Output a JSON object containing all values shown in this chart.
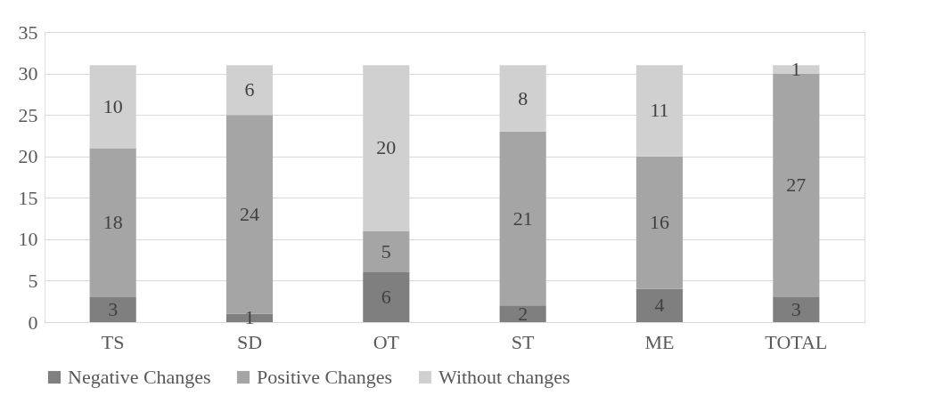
{
  "chart_data": {
    "type": "bar",
    "stacked": true,
    "categories": [
      "TS",
      "SD",
      "OT",
      "ST",
      "ME",
      "TOTAL"
    ],
    "series": [
      {
        "name": "Negative Changes",
        "color": "#7f7f7f",
        "values": [
          3,
          1,
          6,
          2,
          4,
          3
        ]
      },
      {
        "name": "Positive Changes",
        "color": "#a5a5a5",
        "values": [
          18,
          24,
          5,
          21,
          16,
          27
        ]
      },
      {
        "name": "Without changes",
        "color": "#d0d0d0",
        "values": [
          10,
          6,
          20,
          8,
          11,
          1
        ]
      }
    ],
    "ylim": [
      0,
      35
    ],
    "yticks": [
      0,
      5,
      10,
      15,
      20,
      25,
      30,
      35
    ],
    "grid": "y",
    "legend": "bottom",
    "data_labels": true
  }
}
